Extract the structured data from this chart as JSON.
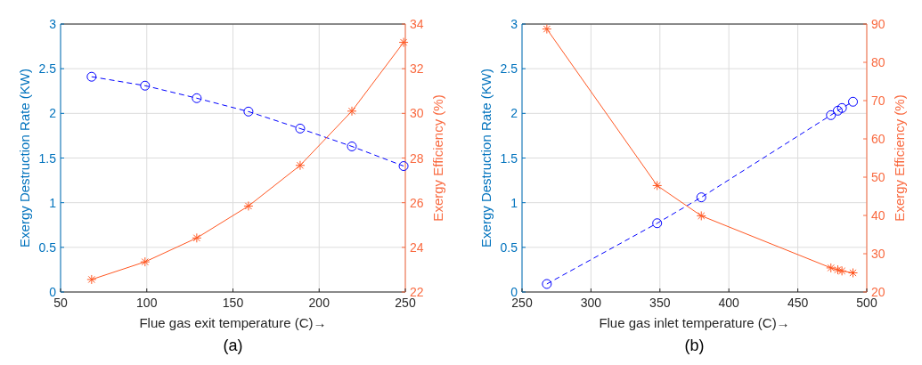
{
  "chart_data": [
    {
      "type": "line",
      "xlabel": "Flue gas exit temperature (C)→",
      "ylabel": "Exergy Destruction Rate (KW)",
      "y2label": "Exergy Efficiency (%)",
      "annotations": [
        "(a)"
      ],
      "x": [
        68,
        99,
        129,
        159,
        189,
        219,
        249
      ],
      "xlim": [
        50,
        250
      ],
      "xticks": [
        50,
        100,
        150,
        200,
        250
      ],
      "ylim": [
        0,
        3
      ],
      "yticks": [
        0,
        0.5,
        1,
        1.5,
        2,
        2.5,
        3
      ],
      "y2lim": [
        22,
        34
      ],
      "y2ticks": [
        22,
        24,
        26,
        28,
        30,
        32,
        34
      ],
      "grid": true,
      "series": [
        {
          "color": "#0000ff",
          "marker": "circle",
          "line_style": "dashed",
          "values": [
            2.41,
            2.31,
            2.17,
            2.02,
            1.83,
            1.63,
            1.41
          ]
        },
        {
          "color": "#ff5722",
          "marker": "cross",
          "line_style": "solid",
          "axis": "y2",
          "values": [
            22.56,
            23.35,
            24.42,
            25.85,
            27.67,
            30.1,
            33.18
          ]
        }
      ]
    },
    {
      "type": "line",
      "xlabel": "Flue gas inlet temperature (C)→",
      "ylabel": "Exergy Destruction Rate (KW)",
      "y2label": "Exergy Efficiency (%)",
      "annotations": [
        "(b)"
      ],
      "x": [
        268,
        348,
        380,
        474,
        479,
        482,
        490
      ],
      "xlim": [
        250,
        500
      ],
      "xticks": [
        250,
        300,
        350,
        400,
        450,
        500
      ],
      "ylim": [
        0,
        3
      ],
      "yticks": [
        0,
        0.5,
        1,
        1.5,
        2,
        2.5,
        3
      ],
      "y2lim": [
        20,
        90
      ],
      "y2ticks": [
        20,
        30,
        40,
        50,
        60,
        70,
        80,
        90
      ],
      "grid": true,
      "series": [
        {
          "color": "#0000ff",
          "marker": "circle",
          "line_style": "dashed",
          "values": [
            0.09,
            0.77,
            1.06,
            1.98,
            2.03,
            2.06,
            2.13
          ]
        },
        {
          "color": "#ff5722",
          "marker": "cross",
          "line_style": "solid",
          "axis": "y2",
          "values": [
            88.7,
            47.8,
            39.9,
            26.3,
            25.8,
            25.5,
            25.0
          ]
        }
      ]
    }
  ]
}
